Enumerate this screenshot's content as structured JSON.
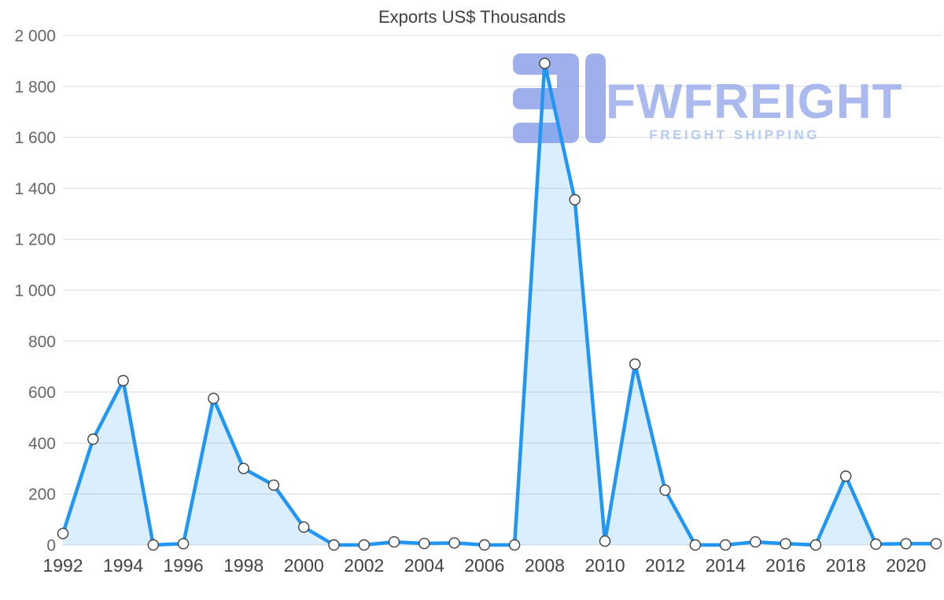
{
  "title": "Exports US$ Thousands",
  "watermark": {
    "brand": "FWFREIGHT",
    "tagline": "FREIGHT SHIPPING",
    "mark_color": "#8FA2E9",
    "brand_color": "#9CAEEC",
    "tagline_color": "#A9C1F2"
  },
  "chart_data": {
    "type": "area",
    "title": "Exports US$ Thousands",
    "xlabel": "",
    "ylabel": "",
    "x": [
      1992,
      1993,
      1994,
      1995,
      1996,
      1997,
      1998,
      1999,
      2000,
      2001,
      2002,
      2003,
      2004,
      2005,
      2006,
      2007,
      2008,
      2009,
      2010,
      2011,
      2012,
      2013,
      2014,
      2015,
      2016,
      2017,
      2018,
      2019,
      2020,
      2021
    ],
    "values": [
      45,
      415,
      645,
      0,
      5,
      575,
      300,
      235,
      70,
      0,
      0,
      12,
      6,
      8,
      0,
      0,
      1890,
      1355,
      15,
      710,
      215,
      0,
      0,
      12,
      5,
      0,
      270,
      3,
      5,
      5
    ],
    "ylim": [
      0,
      2000
    ],
    "ytick_labels": [
      "0",
      "200",
      "400",
      "600",
      "800",
      "1 000",
      "1 200",
      "1 400",
      "1 600",
      "1 800",
      "2 000"
    ],
    "xtick_labels": [
      "1992",
      "1994",
      "1996",
      "1998",
      "2000",
      "2002",
      "2004",
      "2006",
      "2008",
      "2010",
      "2012",
      "2014",
      "2016",
      "2018",
      "2020"
    ],
    "grid": true,
    "legend": "none",
    "colors": {
      "line": "#2196F3",
      "area": "rgba(33,150,243,0.16)",
      "marker_fill": "#FFFFFF",
      "marker_stroke": "#3F3F3F",
      "grid": "#DCDCDC",
      "xtick": "#444444",
      "ytick": "#666666",
      "title": "#3C4043"
    }
  }
}
